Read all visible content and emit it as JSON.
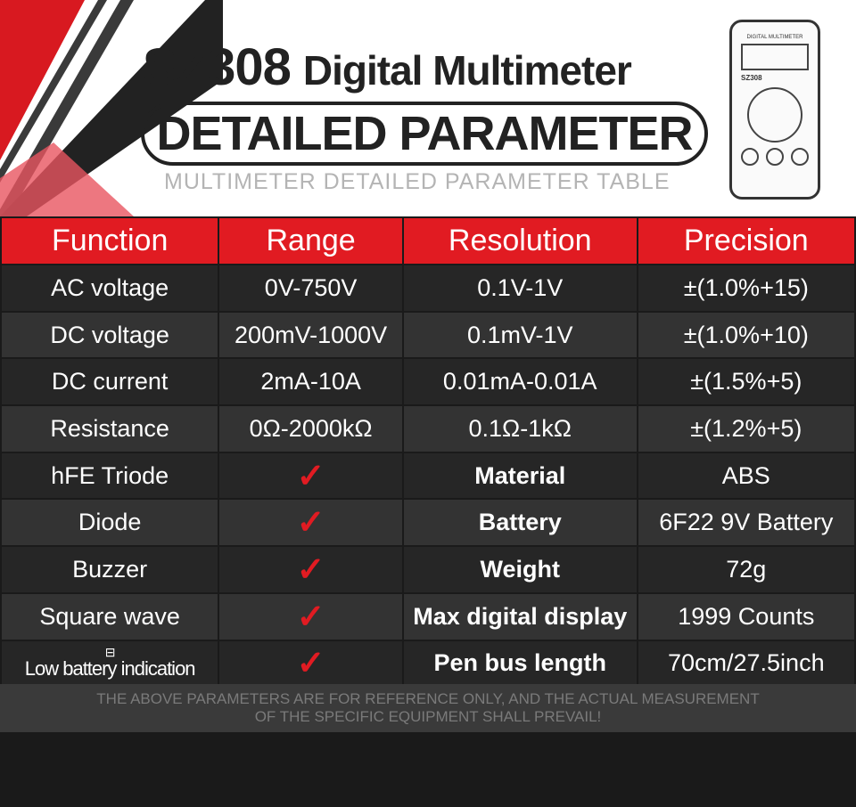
{
  "header": {
    "model": "SZ308",
    "product": "Digital Multimeter",
    "banner": "DETAILED PARAMETER",
    "subtitle": "MULTIMETER DETAILED PARAMETER TABLE",
    "device_label": "DIGITAL MULTIMETER",
    "device_model": "SZ308"
  },
  "columns": [
    "Function",
    "Range",
    "Resolution",
    "Precision"
  ],
  "rows": [
    {
      "function": "AC voltage",
      "range": "0V-750V",
      "resolution": "0.1V-1V",
      "precision": "±(1.0%+15)"
    },
    {
      "function": "DC voltage",
      "range": "200mV-1000V",
      "resolution": "0.1mV-1V",
      "precision": "±(1.0%+10)"
    },
    {
      "function": "DC current",
      "range": "2mA-10A",
      "resolution": "0.01mA-0.01A",
      "precision": "±(1.5%+5)"
    },
    {
      "function": "Resistance",
      "range": "0Ω-2000kΩ",
      "resolution": "0.1Ω-1kΩ",
      "precision": "±(1.2%+5)"
    },
    {
      "function": "hFE Triode",
      "check": "✓",
      "spec": "Material",
      "value": "ABS"
    },
    {
      "function": "Diode",
      "check": "✓",
      "spec": "Battery",
      "value": "6F22 9V Battery"
    },
    {
      "function": "Buzzer",
      "check": "✓",
      "spec": "Weight",
      "value": "72g"
    },
    {
      "function": "Square wave",
      "check": "✓",
      "spec": "Max digital display",
      "value": "1999 Counts"
    },
    {
      "function": "Low battery indication",
      "icon": "battery-icon",
      "check": "✓",
      "spec": "Pen bus length",
      "value": "70cm/27.5inch"
    }
  ],
  "footer": {
    "line1": "THE ABOVE PARAMETERS ARE FOR REFERENCE ONLY, AND THE ACTUAL MEASUREMENT",
    "line2": "OF THE SPECIFIC EQUIPMENT SHALL PREVAIL!"
  },
  "colors": {
    "accent": "#e11b22",
    "dark": "#262626"
  }
}
